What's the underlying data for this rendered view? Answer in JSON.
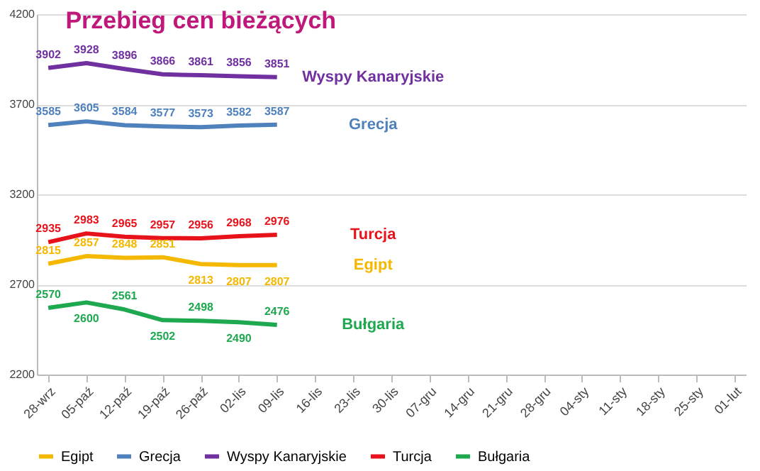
{
  "chart_data": {
    "type": "line",
    "title": "Przebieg cen bieżących",
    "categories": [
      "28-wrz",
      "05-paź",
      "12-paź",
      "19-paź",
      "26-paź",
      "02-lis",
      "09-lis",
      "16-lis",
      "23-lis",
      "30-lis",
      "07-gru",
      "14-gru",
      "21-gru",
      "28-gru",
      "04-sty",
      "11-sty",
      "18-sty",
      "25-sty",
      "01-lut"
    ],
    "series": [
      {
        "name": "Egipt",
        "color": "#f5b800",
        "values": [
          2815,
          2857,
          2848,
          2851,
          2813,
          2807,
          2807,
          null,
          null,
          null,
          null,
          null,
          null,
          null,
          null,
          null,
          null,
          null,
          null
        ]
      },
      {
        "name": "Grecja",
        "color": "#4f81bd",
        "values": [
          3585,
          3605,
          3584,
          3577,
          3573,
          3582,
          3587,
          null,
          null,
          null,
          null,
          null,
          null,
          null,
          null,
          null,
          null,
          null,
          null
        ]
      },
      {
        "name": "Wyspy Kanaryjskie",
        "color": "#7030a0",
        "values": [
          3902,
          3928,
          3896,
          3866,
          3861,
          3856,
          3851,
          null,
          null,
          null,
          null,
          null,
          null,
          null,
          null,
          null,
          null,
          null,
          null
        ]
      },
      {
        "name": "Turcja",
        "color": "#e8121b",
        "values": [
          2935,
          2983,
          2965,
          2957,
          2956,
          2968,
          2976,
          null,
          null,
          null,
          null,
          null,
          null,
          null,
          null,
          null,
          null,
          null,
          null
        ]
      },
      {
        "name": "Bułgaria",
        "color": "#1ea84f",
        "values": [
          2570,
          2600,
          2561,
          2502,
          2498,
          2490,
          2476,
          null,
          null,
          null,
          null,
          null,
          null,
          null,
          null,
          null,
          null,
          null,
          null
        ]
      }
    ],
    "ylim": [
      2200,
      4200
    ],
    "yticks": [
      2200,
      2700,
      3200,
      3700,
      4200
    ],
    "grid": "y",
    "legend": "bottom",
    "data_labels": true,
    "marker": "none",
    "line_style": "solid"
  }
}
